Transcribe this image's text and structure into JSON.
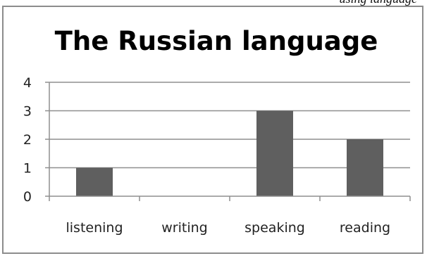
{
  "header_crop_text": "using language",
  "chart_data": {
    "type": "bar",
    "title": "The Russian language",
    "xlabel": "",
    "ylabel": "",
    "categories": [
      "listening",
      "writing",
      "speaking",
      "reading"
    ],
    "values": [
      1,
      0,
      3,
      2
    ],
    "ylim": [
      0,
      4
    ],
    "yticks": [
      "0",
      "1",
      "2",
      "3",
      "4"
    ],
    "grid": true,
    "legend": "none",
    "bar_color": "#5f5f5f",
    "gridline_color": "#8f8f8f"
  }
}
